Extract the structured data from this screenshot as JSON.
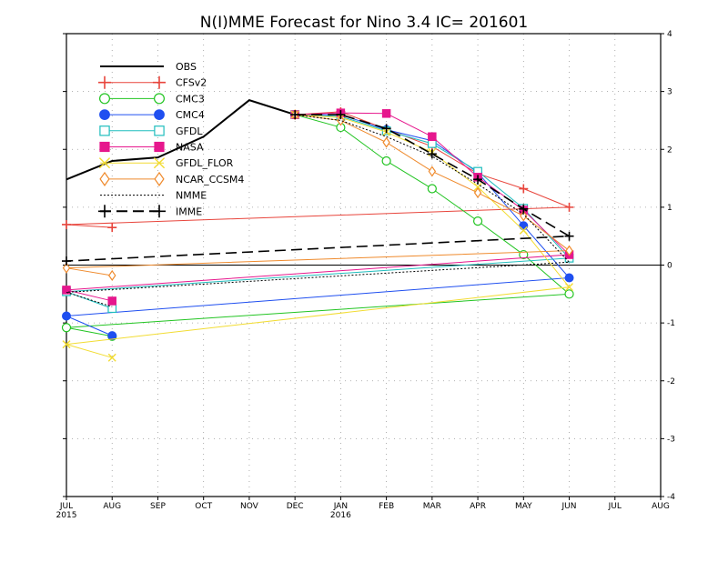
{
  "chart_data": {
    "type": "line",
    "title": "N(I)MME Forecast for Nino 3.4   IC= 201601",
    "x_categories": [
      "JUL",
      "AUG",
      "SEP",
      "OCT",
      "NOV",
      "DEC",
      "JAN",
      "FEB",
      "MAR",
      "APR",
      "MAY",
      "JUN",
      "JUL",
      "AUG"
    ],
    "x_year_labels": [
      {
        "at": "JUL",
        "text": "2015"
      },
      {
        "at": "JAN",
        "text": "2016"
      }
    ],
    "ylim": [
      -4,
      4
    ],
    "yticks": [
      4,
      3,
      2,
      1,
      0,
      -1,
      -2,
      -3,
      -4
    ],
    "grid": true,
    "zero_line": true,
    "legend_position": "top-left",
    "series": [
      {
        "name": "OBS",
        "color": "#000000",
        "marker": "none",
        "dash": "solid",
        "x": [
          "JUL",
          "AUG",
          "SEP",
          "OCT",
          "NOV",
          "DEC"
        ],
        "y": [
          1.48,
          1.8,
          1.86,
          2.22,
          2.85,
          2.6
        ]
      },
      {
        "name": "CFSv2",
        "color": "#e8453c",
        "marker": "plus",
        "dash": "solid",
        "x": [
          "DEC",
          "JAN",
          "FEB",
          "MAR",
          "APR",
          "MAY",
          "JUN",
          "JUL",
          "AUG"
        ],
        "y": [
          2.6,
          2.65,
          2.35,
          2.05,
          1.58,
          1.32,
          1.0,
          0.7,
          0.65
        ]
      },
      {
        "name": "CMC3",
        "color": "#22c422",
        "marker": "open-circle",
        "dash": "solid",
        "x": [
          "DEC",
          "JAN",
          "FEB",
          "MAR",
          "APR",
          "MAY",
          "JUN",
          "JUL",
          "AUG"
        ],
        "y": [
          2.6,
          2.38,
          1.8,
          1.32,
          0.76,
          0.18,
          -0.5,
          -1.08,
          -1.23
        ]
      },
      {
        "name": "CMC4",
        "color": "#1f4ff0",
        "marker": "filled-circle",
        "dash": "solid",
        "x": [
          "DEC",
          "JAN",
          "FEB",
          "MAR",
          "APR",
          "MAY",
          "JUN",
          "JUL",
          "AUG"
        ],
        "y": [
          2.6,
          2.6,
          2.34,
          2.15,
          1.6,
          0.68,
          -0.22,
          -0.88,
          -1.22
        ]
      },
      {
        "name": "GFDL",
        "color": "#1fbdbd",
        "marker": "open-square",
        "dash": "solid",
        "x": [
          "DEC",
          "JAN",
          "FEB",
          "MAR",
          "APR",
          "MAY",
          "JUN",
          "JUL",
          "AUG"
        ],
        "y": [
          2.6,
          2.57,
          2.32,
          2.1,
          1.62,
          0.98,
          0.12,
          -0.46,
          -0.75
        ]
      },
      {
        "name": "NASA",
        "color": "#e6178d",
        "marker": "filled-square",
        "dash": "solid",
        "x": [
          "DEC",
          "JAN",
          "FEB",
          "MAR",
          "APR",
          "MAY",
          "JUN",
          "JUL",
          "AUG"
        ],
        "y": [
          2.6,
          2.63,
          2.62,
          2.22,
          1.52,
          0.95,
          0.18,
          -0.43,
          -0.62
        ]
      },
      {
        "name": "GFDL_FLOR",
        "color": "#f2dc32",
        "marker": "x",
        "dash": "solid",
        "x": [
          "DEC",
          "JAN",
          "FEB",
          "MAR",
          "APR",
          "MAY",
          "JUN",
          "JUL",
          "AUG"
        ],
        "y": [
          2.6,
          2.55,
          2.3,
          1.95,
          1.35,
          0.6,
          -0.38,
          -1.37,
          -1.6
        ]
      },
      {
        "name": "NCAR_CCSM4",
        "color": "#ef8a2c",
        "marker": "open-diamond",
        "dash": "solid",
        "x": [
          "DEC",
          "JAN",
          "FEB",
          "MAR",
          "APR",
          "MAY",
          "JUN",
          "JUL",
          "AUG"
        ],
        "y": [
          2.6,
          2.5,
          2.12,
          1.62,
          1.25,
          0.85,
          0.25,
          -0.05,
          -0.18
        ]
      },
      {
        "name": "NMME",
        "color": "#000000",
        "marker": "none",
        "dash": "dotted",
        "x": [
          "DEC",
          "JAN",
          "FEB",
          "MAR",
          "APR",
          "MAY",
          "JUN",
          "JUL",
          "AUG"
        ],
        "y": [
          2.6,
          2.5,
          2.22,
          1.88,
          1.4,
          0.88,
          0.05,
          -0.47,
          -0.72
        ]
      },
      {
        "name": "IMME",
        "color": "#000000",
        "marker": "plus",
        "dash": "dashed",
        "x": [
          "DEC",
          "JAN",
          "FEB",
          "MAR",
          "APR",
          "MAY",
          "JUN",
          "JUL"
        ],
        "y": [
          2.6,
          2.6,
          2.36,
          1.92,
          1.48,
          0.97,
          0.5,
          0.07
        ]
      }
    ]
  }
}
